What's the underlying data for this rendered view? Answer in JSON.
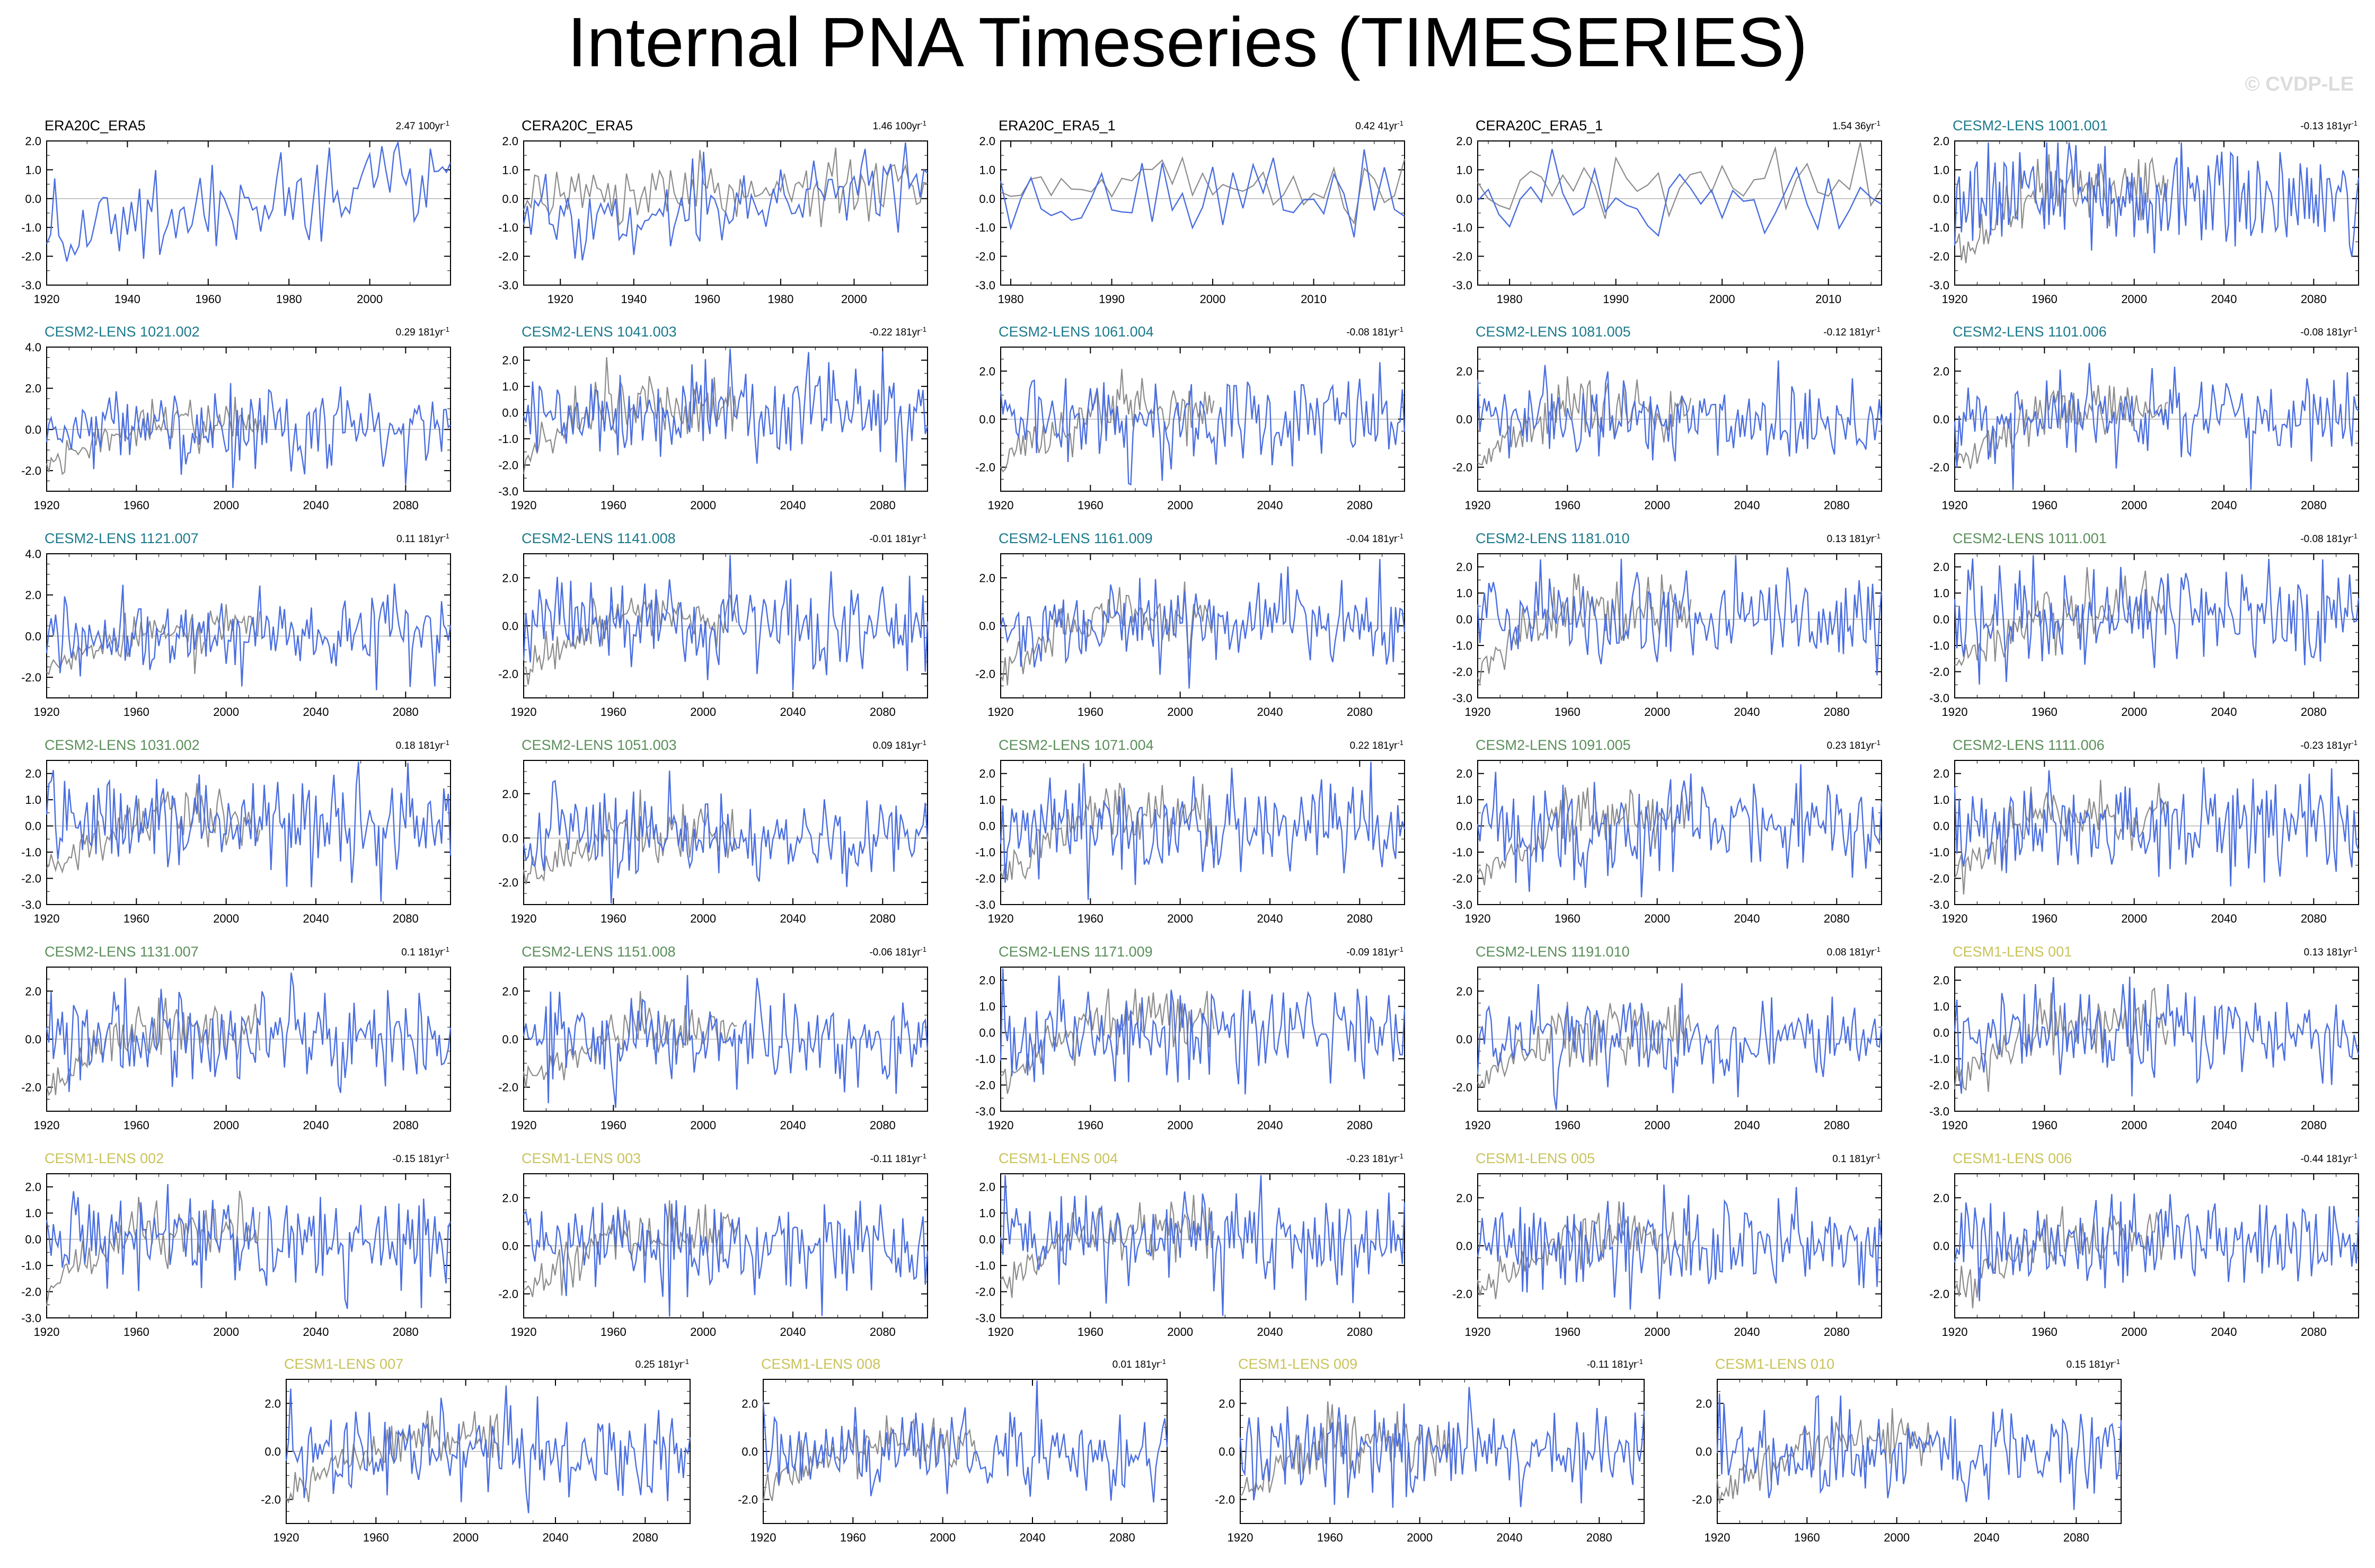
{
  "header": {
    "title": "Internal PNA Timeseries (TIMESERIES)",
    "watermark": "© CVDP-LE"
  },
  "colors": {
    "model_line": "#4a6ee0",
    "obs_line": "#8c8c8c",
    "era_title": "#000000",
    "cesm2_a": "#1c7a8c",
    "cesm2_b": "#5a8f5a",
    "cesm1": "#c9c35a"
  },
  "chart_data": [
    {
      "type": "line",
      "title": "ERA20C_ERA5",
      "trend": "2.47 100yr",
      "title_group": "era",
      "xlim": [
        1920,
        2020
      ],
      "ylim": [
        -3,
        2
      ],
      "xticks": [
        1920,
        1940,
        1960,
        1980,
        2000
      ],
      "yticks": [
        "2.0",
        "1.0",
        "0.0",
        "-1.0",
        "-2.0",
        "-3.0"
      ],
      "grid": false,
      "obs": false,
      "seed": 11
    },
    {
      "type": "line",
      "title": "CERA20C_ERA5",
      "trend": "1.46 100yr",
      "title_group": "era",
      "xlim": [
        1910,
        2020
      ],
      "ylim": [
        -3,
        2
      ],
      "xticks": [
        1920,
        1940,
        1960,
        1980,
        2000
      ],
      "yticks": [
        "2.0",
        "1.0",
        "0.0",
        "-1.0",
        "-2.0",
        "-3.0"
      ],
      "grid": false,
      "obs": true,
      "seed": 12
    },
    {
      "type": "line",
      "title": "ERA20C_ERA5_1",
      "trend": "0.42 41yr",
      "title_group": "era",
      "xlim": [
        1979,
        2019
      ],
      "ylim": [
        -3,
        2
      ],
      "xticks": [
        1980,
        1990,
        2000,
        2010
      ],
      "yticks": [
        "2.0",
        "1.0",
        "0.0",
        "-1.0",
        "-2.0",
        "-3.0"
      ],
      "grid": false,
      "obs": true,
      "seed": 13
    },
    {
      "type": "line",
      "title": "CERA20C_ERA5_1",
      "trend": "1.54 36yr",
      "title_group": "era",
      "xlim": [
        1977,
        2015
      ],
      "ylim": [
        -3,
        2
      ],
      "xticks": [
        1980,
        1990,
        2000,
        2010
      ],
      "yticks": [
        "2.0",
        "1.0",
        "0.0",
        "-1.0",
        "-2.0",
        "-3.0"
      ],
      "grid": false,
      "obs": true,
      "seed": 14
    },
    {
      "type": "line",
      "title": "CESM2-LENS 1001.001",
      "trend": "-0.13 181yr",
      "title_group": "cesm2_a",
      "xlim": [
        1920,
        2100
      ],
      "ylim": [
        -3,
        2
      ],
      "xticks": [
        1920,
        1960,
        2000,
        2040,
        2080
      ],
      "yticks": [
        "2.0",
        "1.0",
        "0.0",
        "-1.0",
        "-2.0",
        "-3.0"
      ],
      "grid": false,
      "obs": true,
      "seed": 15
    },
    {
      "type": "line",
      "title": "CESM2-LENS 1021.002",
      "trend": "0.29 181yr",
      "title_group": "cesm2_a",
      "xlim": [
        1920,
        2100
      ],
      "ylim": [
        -3,
        4
      ],
      "xticks": [
        1920,
        1960,
        2000,
        2040,
        2080
      ],
      "yticks": [
        "4.0",
        "2.0",
        "0.0",
        "-2.0"
      ],
      "grid": false,
      "obs": true,
      "seed": 21
    },
    {
      "type": "line",
      "title": "CESM2-LENS 1041.003",
      "trend": "-0.22 181yr",
      "title_group": "cesm2_a",
      "xlim": [
        1920,
        2100
      ],
      "ylim": [
        -3,
        2.5
      ],
      "xticks": [
        1920,
        1960,
        2000,
        2040,
        2080
      ],
      "yticks": [
        "2.0",
        "1.0",
        "0.0",
        "-1.0",
        "-2.0",
        "-3.0"
      ],
      "grid": false,
      "obs": true,
      "seed": 22
    },
    {
      "type": "line",
      "title": "CESM2-LENS 1061.004",
      "trend": "-0.08 181yr",
      "title_group": "cesm2_a",
      "xlim": [
        1920,
        2100
      ],
      "ylim": [
        -3,
        3
      ],
      "xticks": [
        1920,
        1960,
        2000,
        2040,
        2080
      ],
      "yticks": [
        "2.0",
        "0.0",
        "-2.0"
      ],
      "grid": false,
      "obs": true,
      "seed": 23
    },
    {
      "type": "line",
      "title": "CESM2-LENS 1081.005",
      "trend": "-0.12 181yr",
      "title_group": "cesm2_a",
      "xlim": [
        1920,
        2100
      ],
      "ylim": [
        -3,
        3
      ],
      "xticks": [
        1920,
        1960,
        2000,
        2040,
        2080
      ],
      "yticks": [
        "2.0",
        "0.0",
        "-2.0"
      ],
      "grid": false,
      "obs": true,
      "seed": 24
    },
    {
      "type": "line",
      "title": "CESM2-LENS 1101.006",
      "trend": "-0.08 181yr",
      "title_group": "cesm2_a",
      "xlim": [
        1920,
        2100
      ],
      "ylim": [
        -3,
        3
      ],
      "xticks": [
        1920,
        1960,
        2000,
        2040,
        2080
      ],
      "yticks": [
        "2.0",
        "0.0",
        "-2.0"
      ],
      "grid": false,
      "obs": true,
      "seed": 25
    },
    {
      "type": "line",
      "title": "CESM2-LENS 1121.007",
      "trend": "0.11 181yr",
      "title_group": "cesm2_a",
      "xlim": [
        1920,
        2100
      ],
      "ylim": [
        -3,
        4
      ],
      "xticks": [
        1920,
        1960,
        2000,
        2040,
        2080
      ],
      "yticks": [
        "4.0",
        "2.0",
        "0.0",
        "-2.0"
      ],
      "grid": false,
      "obs": true,
      "seed": 31
    },
    {
      "type": "line",
      "title": "CESM2-LENS 1141.008",
      "trend": "-0.01 181yr",
      "title_group": "cesm2_a",
      "xlim": [
        1920,
        2100
      ],
      "ylim": [
        -3,
        3
      ],
      "xticks": [
        1920,
        1960,
        2000,
        2040,
        2080
      ],
      "yticks": [
        "2.0",
        "0.0",
        "-2.0"
      ],
      "grid": false,
      "obs": true,
      "seed": 32
    },
    {
      "type": "line",
      "title": "CESM2-LENS 1161.009",
      "trend": "-0.04 181yr",
      "title_group": "cesm2_a",
      "xlim": [
        1920,
        2100
      ],
      "ylim": [
        -3,
        3
      ],
      "xticks": [
        1920,
        1960,
        2000,
        2040,
        2080
      ],
      "yticks": [
        "2.0",
        "0.0",
        "-2.0"
      ],
      "grid": false,
      "obs": true,
      "seed": 33
    },
    {
      "type": "line",
      "title": "CESM2-LENS 1181.010",
      "trend": "0.13 181yr",
      "title_group": "cesm2_a",
      "xlim": [
        1920,
        2100
      ],
      "ylim": [
        -3,
        2.5
      ],
      "xticks": [
        1920,
        1960,
        2000,
        2040,
        2080
      ],
      "yticks": [
        "2.0",
        "1.0",
        "0.0",
        "-1.0",
        "-2.0",
        "-3.0"
      ],
      "grid": false,
      "obs": true,
      "seed": 34
    },
    {
      "type": "line",
      "title": "CESM2-LENS 1011.001",
      "trend": "-0.08 181yr",
      "title_group": "cesm2_b",
      "xlim": [
        1920,
        2100
      ],
      "ylim": [
        -3,
        2.5
      ],
      "xticks": [
        1920,
        1960,
        2000,
        2040,
        2080
      ],
      "yticks": [
        "2.0",
        "1.0",
        "0.0",
        "-1.0",
        "-2.0",
        "-3.0"
      ],
      "grid": false,
      "obs": true,
      "seed": 35
    },
    {
      "type": "line",
      "title": "CESM2-LENS 1031.002",
      "trend": "0.18 181yr",
      "title_group": "cesm2_b",
      "xlim": [
        1920,
        2100
      ],
      "ylim": [
        -3,
        2.5
      ],
      "xticks": [
        1920,
        1960,
        2000,
        2040,
        2080
      ],
      "yticks": [
        "2.0",
        "1.0",
        "0.0",
        "-1.0",
        "-2.0",
        "-3.0"
      ],
      "grid": false,
      "obs": true,
      "seed": 41
    },
    {
      "type": "line",
      "title": "CESM2-LENS 1051.003",
      "trend": "0.09 181yr",
      "title_group": "cesm2_b",
      "xlim": [
        1920,
        2100
      ],
      "ylim": [
        -3,
        3.5
      ],
      "xticks": [
        1920,
        1960,
        2000,
        2040,
        2080
      ],
      "yticks": [
        "2.0",
        "0.0",
        "-2.0"
      ],
      "grid": false,
      "obs": true,
      "seed": 42
    },
    {
      "type": "line",
      "title": "CESM2-LENS 1071.004",
      "trend": "0.22 181yr",
      "title_group": "cesm2_b",
      "xlim": [
        1920,
        2100
      ],
      "ylim": [
        -3,
        2.5
      ],
      "xticks": [
        1920,
        1960,
        2000,
        2040,
        2080
      ],
      "yticks": [
        "2.0",
        "1.0",
        "0.0",
        "-1.0",
        "-2.0",
        "-3.0"
      ],
      "grid": false,
      "obs": true,
      "seed": 43
    },
    {
      "type": "line",
      "title": "CESM2-LENS 1091.005",
      "trend": "0.23 181yr",
      "title_group": "cesm2_b",
      "xlim": [
        1920,
        2100
      ],
      "ylim": [
        -3,
        2.5
      ],
      "xticks": [
        1920,
        1960,
        2000,
        2040,
        2080
      ],
      "yticks": [
        "2.0",
        "1.0",
        "0.0",
        "-1.0",
        "-2.0",
        "-3.0"
      ],
      "grid": false,
      "obs": true,
      "seed": 44
    },
    {
      "type": "line",
      "title": "CESM2-LENS 1111.006",
      "trend": "-0.23 181yr",
      "title_group": "cesm2_b",
      "xlim": [
        1920,
        2100
      ],
      "ylim": [
        -3,
        2.5
      ],
      "xticks": [
        1920,
        1960,
        2000,
        2040,
        2080
      ],
      "yticks": [
        "2.0",
        "1.0",
        "0.0",
        "-1.0",
        "-2.0",
        "-3.0"
      ],
      "grid": false,
      "obs": true,
      "seed": 45
    },
    {
      "type": "line",
      "title": "CESM2-LENS 1131.007",
      "trend": "0.1 181yr",
      "title_group": "cesm2_b",
      "xlim": [
        1920,
        2100
      ],
      "ylim": [
        -3,
        3
      ],
      "xticks": [
        1920,
        1960,
        2000,
        2040,
        2080
      ],
      "yticks": [
        "2.0",
        "0.0",
        "-2.0"
      ],
      "grid": false,
      "obs": true,
      "seed": 51
    },
    {
      "type": "line",
      "title": "CESM2-LENS 1151.008",
      "trend": "-0.06 181yr",
      "title_group": "cesm2_b",
      "xlim": [
        1920,
        2100
      ],
      "ylim": [
        -3,
        3
      ],
      "xticks": [
        1920,
        1960,
        2000,
        2040,
        2080
      ],
      "yticks": [
        "2.0",
        "0.0",
        "-2.0"
      ],
      "grid": false,
      "obs": true,
      "seed": 52
    },
    {
      "type": "line",
      "title": "CESM2-LENS 1171.009",
      "trend": "-0.09 181yr",
      "title_group": "cesm2_b",
      "xlim": [
        1920,
        2100
      ],
      "ylim": [
        -3,
        2.5
      ],
      "xticks": [
        1920,
        1960,
        2000,
        2040,
        2080
      ],
      "yticks": [
        "2.0",
        "1.0",
        "0.0",
        "-1.0",
        "-2.0",
        "-3.0"
      ],
      "grid": false,
      "obs": true,
      "seed": 53
    },
    {
      "type": "line",
      "title": "CESM2-LENS 1191.010",
      "trend": "0.08 181yr",
      "title_group": "cesm2_b",
      "xlim": [
        1920,
        2100
      ],
      "ylim": [
        -3,
        3
      ],
      "xticks": [
        1920,
        1960,
        2000,
        2040,
        2080
      ],
      "yticks": [
        "2.0",
        "0.0",
        "-2.0"
      ],
      "grid": false,
      "obs": true,
      "seed": 54
    },
    {
      "type": "line",
      "title": "CESM1-LENS 001",
      "trend": "0.13 181yr",
      "title_group": "cesm1",
      "xlim": [
        1920,
        2100
      ],
      "ylim": [
        -3,
        2.5
      ],
      "xticks": [
        1920,
        1960,
        2000,
        2040,
        2080
      ],
      "yticks": [
        "2.0",
        "1.0",
        "0.0",
        "-1.0",
        "-2.0",
        "-3.0"
      ],
      "grid": false,
      "obs": true,
      "seed": 55
    },
    {
      "type": "line",
      "title": "CESM1-LENS 002",
      "trend": "-0.15 181yr",
      "title_group": "cesm1",
      "xlim": [
        1920,
        2100
      ],
      "ylim": [
        -3,
        2.5
      ],
      "xticks": [
        1920,
        1960,
        2000,
        2040,
        2080
      ],
      "yticks": [
        "2.0",
        "1.0",
        "0.0",
        "-1.0",
        "-2.0",
        "-3.0"
      ],
      "grid": false,
      "obs": true,
      "seed": 61
    },
    {
      "type": "line",
      "title": "CESM1-LENS 003",
      "trend": "-0.11 181yr",
      "title_group": "cesm1",
      "xlim": [
        1920,
        2100
      ],
      "ylim": [
        -3,
        3
      ],
      "xticks": [
        1920,
        1960,
        2000,
        2040,
        2080
      ],
      "yticks": [
        "2.0",
        "0.0",
        "-2.0"
      ],
      "grid": false,
      "obs": true,
      "seed": 62
    },
    {
      "type": "line",
      "title": "CESM1-LENS 004",
      "trend": "-0.23 181yr",
      "title_group": "cesm1",
      "xlim": [
        1920,
        2100
      ],
      "ylim": [
        -3,
        2.5
      ],
      "xticks": [
        1920,
        1960,
        2000,
        2040,
        2080
      ],
      "yticks": [
        "2.0",
        "1.0",
        "0.0",
        "-1.0",
        "-2.0",
        "-3.0"
      ],
      "grid": false,
      "obs": true,
      "seed": 63
    },
    {
      "type": "line",
      "title": "CESM1-LENS 005",
      "trend": "0.1 181yr",
      "title_group": "cesm1",
      "xlim": [
        1920,
        2100
      ],
      "ylim": [
        -3,
        3
      ],
      "xticks": [
        1920,
        1960,
        2000,
        2040,
        2080
      ],
      "yticks": [
        "2.0",
        "0.0",
        "-2.0"
      ],
      "grid": false,
      "obs": true,
      "seed": 64
    },
    {
      "type": "line",
      "title": "CESM1-LENS 006",
      "trend": "-0.44 181yr",
      "title_group": "cesm1",
      "xlim": [
        1920,
        2100
      ],
      "ylim": [
        -3,
        3
      ],
      "xticks": [
        1920,
        1960,
        2000,
        2040,
        2080
      ],
      "yticks": [
        "2.0",
        "0.0",
        "-2.0"
      ],
      "grid": false,
      "obs": true,
      "seed": 65
    },
    {
      "type": "line",
      "title": "CESM1-LENS 007",
      "trend": "0.25 181yr",
      "title_group": "cesm1",
      "xlim": [
        1920,
        2100
      ],
      "ylim": [
        -3,
        3
      ],
      "xticks": [
        1920,
        1960,
        2000,
        2040,
        2080
      ],
      "yticks": [
        "2.0",
        "0.0",
        "-2.0"
      ],
      "grid": false,
      "obs": true,
      "seed": 71
    },
    {
      "type": "line",
      "title": "CESM1-LENS 008",
      "trend": "0.01 181yr",
      "title_group": "cesm1",
      "xlim": [
        1920,
        2100
      ],
      "ylim": [
        -3,
        3
      ],
      "xticks": [
        1920,
        1960,
        2000,
        2040,
        2080
      ],
      "yticks": [
        "2.0",
        "0.0",
        "-2.0"
      ],
      "grid": false,
      "obs": true,
      "seed": 72
    },
    {
      "type": "line",
      "title": "CESM1-LENS 009",
      "trend": "-0.11 181yr",
      "title_group": "cesm1",
      "xlim": [
        1920,
        2100
      ],
      "ylim": [
        -3,
        3
      ],
      "xticks": [
        1920,
        1960,
        2000,
        2040,
        2080
      ],
      "yticks": [
        "2.0",
        "0.0",
        "-2.0"
      ],
      "grid": false,
      "obs": true,
      "seed": 73
    },
    {
      "type": "line",
      "title": "CESM1-LENS 010",
      "trend": "0.15 181yr",
      "title_group": "cesm1",
      "xlim": [
        1920,
        2100
      ],
      "ylim": [
        -3,
        3
      ],
      "xticks": [
        1920,
        1960,
        2000,
        2040,
        2080
      ],
      "yticks": [
        "2.0",
        "0.0",
        "-2.0"
      ],
      "grid": false,
      "obs": true,
      "seed": 74
    }
  ]
}
